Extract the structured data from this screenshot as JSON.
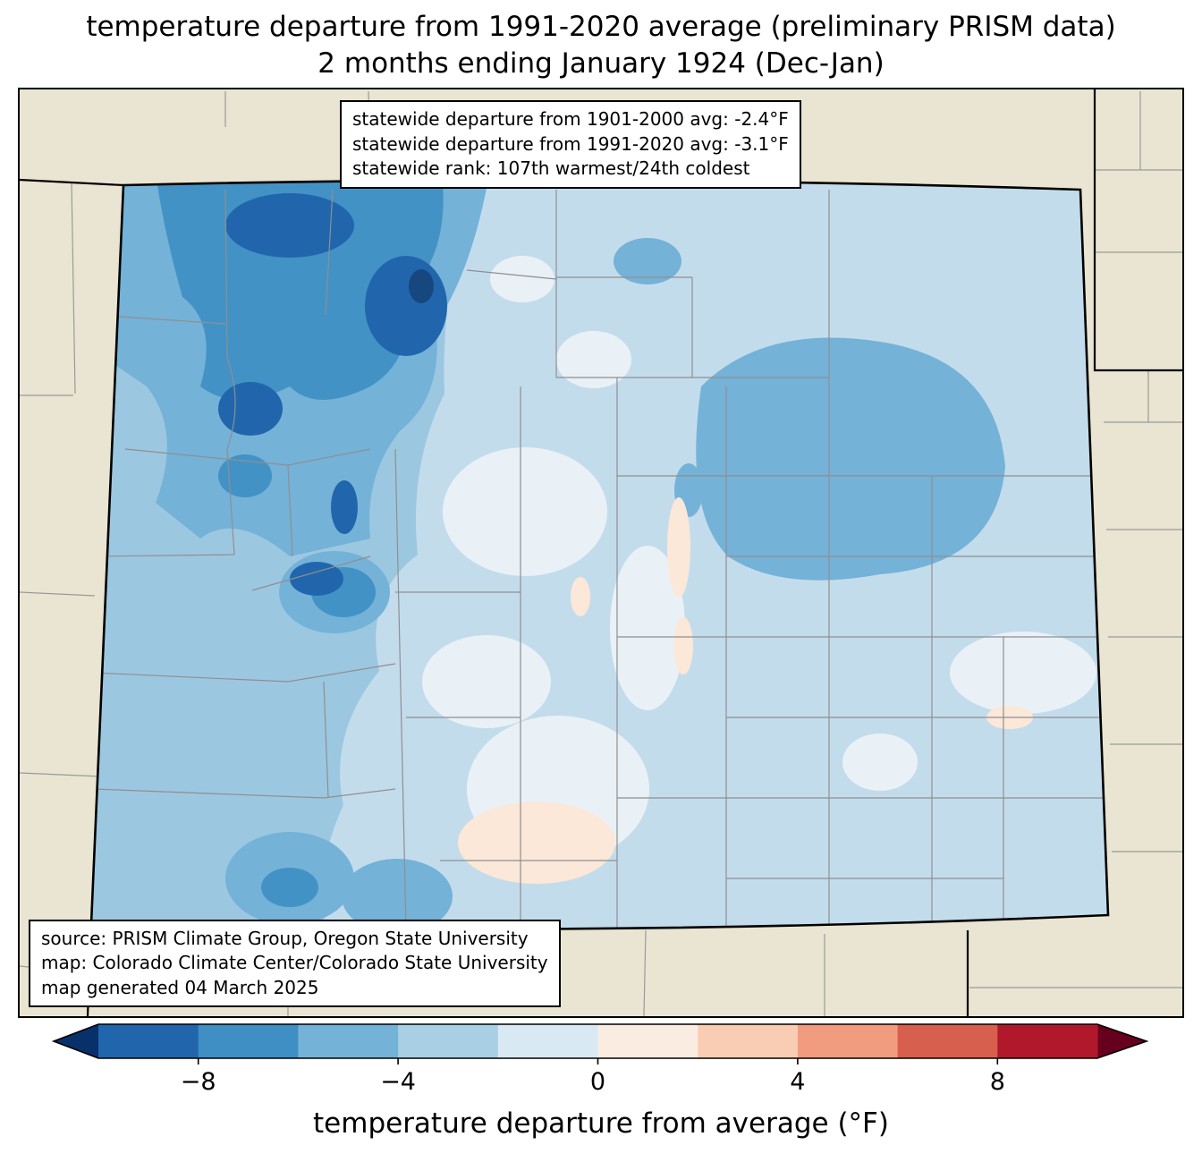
{
  "title": {
    "line1": "temperature departure from 1991-2020 average (preliminary PRISM data)",
    "line2": "2 months ending January 1924 (Dec-Jan)"
  },
  "stats_box": {
    "lines": [
      "statewide departure from 1901-2000 avg: -2.4°F",
      "statewide departure from 1991-2020 avg: -3.1°F",
      "statewide rank: 107th warmest/24th coldest"
    ]
  },
  "credits_box": {
    "lines": [
      "source: PRISM Climate Group, Oregon State University",
      "map: Colorado Climate Center/Colorado State University",
      "map generated 04 March 2025"
    ]
  },
  "colorbar": {
    "label": "temperature departure from average (°F)",
    "range_min": -10,
    "range_max": 10,
    "ticks": [
      {
        "value": -8,
        "label": "−8"
      },
      {
        "value": -4,
        "label": "−4"
      },
      {
        "value": 0,
        "label": "0"
      },
      {
        "value": 4,
        "label": "4"
      },
      {
        "value": 8,
        "label": "8"
      }
    ],
    "segment_colors": [
      "#2166ac",
      "#3f8ec4",
      "#74b2d8",
      "#a8cfe3",
      "#d8e9f3",
      "#fbece1",
      "#f9cdb3",
      "#f19c7f",
      "#d75f4e",
      "#b2182b"
    ],
    "under_arrow_color": "#08306b",
    "over_arrow_color": "#67001f"
  },
  "map": {
    "region_label": "Colorado",
    "colors": {
      "outside_fill": "#e9e5d2",
      "state_border": "#000000",
      "county_line": "#8f8f8f",
      "base_fill": "#c3dcec",
      "west_wash": "#9cc7e0",
      "medium_blue": "#74b2d8",
      "dark_blue": "#4292c6",
      "darker_blue": "#2166ac",
      "darkest_blue": "#16477e",
      "near_white": "#e9f1f7",
      "pale_peach": "#fbe8d8"
    }
  }
}
